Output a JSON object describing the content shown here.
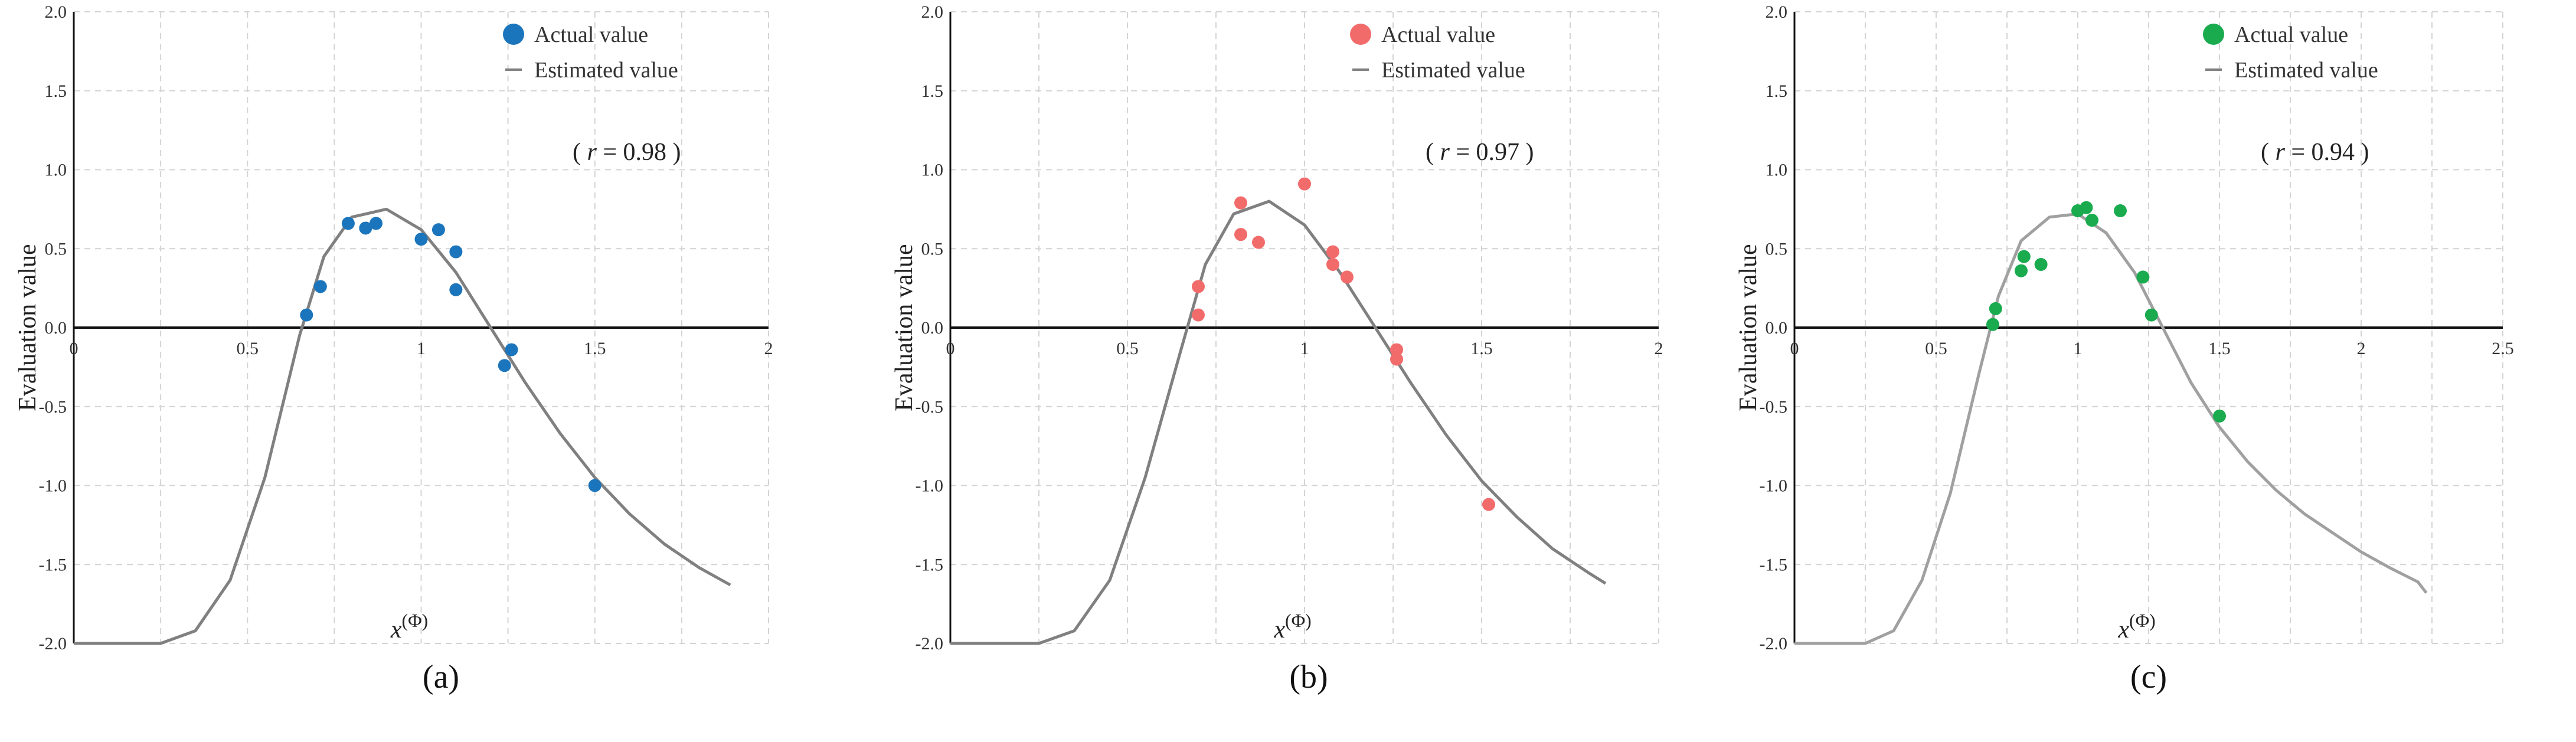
{
  "chart_data": [
    {
      "type": "scatter",
      "panel": "a",
      "caption": "(a)",
      "ylabel": "Evaluation value",
      "xlabel_base": "x",
      "xlabel_sup": "(Φ)",
      "origin_label": "0",
      "xlim": [
        0,
        2
      ],
      "ylim": [
        -2.0,
        2.0
      ],
      "xticks": [
        {
          "v": 0.5,
          "label": "0.5"
        },
        {
          "v": 1,
          "label": "1"
        },
        {
          "v": 1.5,
          "label": "1.5"
        },
        {
          "v": 2,
          "label": "2"
        }
      ],
      "yticks": [
        {
          "v": 2.0,
          "label": "2.0"
        },
        {
          "v": 1.5,
          "label": "1.5"
        },
        {
          "v": 1.0,
          "label": "1.0"
        },
        {
          "v": 0.5,
          "label": "0.5"
        },
        {
          "v": 0.0,
          "label": "0.0"
        },
        {
          "v": -0.5,
          "label": "-0.5"
        },
        {
          "v": -1.0,
          "label": "-1.0"
        },
        {
          "v": -1.5,
          "label": "-1.5"
        },
        {
          "v": -2.0,
          "label": "-2.0"
        }
      ],
      "grid": true,
      "legend": {
        "placement": "top-right",
        "actual": "Actual value",
        "estimated": "Estimated value"
      },
      "r_label": "( r = 0.98 )",
      "color": "#1b75bc",
      "curve_color": "#808080",
      "series": [
        {
          "name": "Actual value",
          "points": [
            [
              0.67,
              0.08
            ],
            [
              0.71,
              0.26
            ],
            [
              0.79,
              0.66
            ],
            [
              0.84,
              0.63
            ],
            [
              0.87,
              0.66
            ],
            [
              1.0,
              0.56
            ],
            [
              1.05,
              0.62
            ],
            [
              1.1,
              0.48
            ],
            [
              1.1,
              0.24
            ],
            [
              1.24,
              -0.24
            ],
            [
              1.26,
              -0.14
            ],
            [
              1.5,
              -1.0
            ]
          ]
        },
        {
          "name": "Estimated value",
          "points": [
            [
              0.0,
              -2.0
            ],
            [
              0.25,
              -2.0
            ],
            [
              0.35,
              -1.92
            ],
            [
              0.45,
              -1.6
            ],
            [
              0.55,
              -0.95
            ],
            [
              0.65,
              -0.05
            ],
            [
              0.72,
              0.45
            ],
            [
              0.8,
              0.7
            ],
            [
              0.9,
              0.75
            ],
            [
              1.0,
              0.62
            ],
            [
              1.1,
              0.35
            ],
            [
              1.2,
              0.0
            ],
            [
              1.3,
              -0.35
            ],
            [
              1.4,
              -0.67
            ],
            [
              1.5,
              -0.95
            ],
            [
              1.6,
              -1.18
            ],
            [
              1.7,
              -1.37
            ],
            [
              1.8,
              -1.52
            ],
            [
              1.89,
              -1.63
            ]
          ]
        }
      ]
    },
    {
      "type": "scatter",
      "panel": "b",
      "caption": "(b)",
      "ylabel": "Evaluation value",
      "xlabel_base": "x",
      "xlabel_sup": "(Φ)",
      "origin_label": "0",
      "xlim": [
        0,
        2
      ],
      "ylim": [
        -2.0,
        2.0
      ],
      "xticks": [
        {
          "v": 0.5,
          "label": "0.5"
        },
        {
          "v": 1,
          "label": "1"
        },
        {
          "v": 1.5,
          "label": "1.5"
        },
        {
          "v": 2,
          "label": "2"
        }
      ],
      "yticks": [
        {
          "v": 2.0,
          "label": "2.0"
        },
        {
          "v": 1.5,
          "label": "1.5"
        },
        {
          "v": 1.0,
          "label": "1.0"
        },
        {
          "v": 0.5,
          "label": "0.5"
        },
        {
          "v": 0.0,
          "label": "0.0"
        },
        {
          "v": -0.5,
          "label": "-0.5"
        },
        {
          "v": -1.0,
          "label": "-1.0"
        },
        {
          "v": -1.5,
          "label": "-1.5"
        },
        {
          "v": -2.0,
          "label": "-2.0"
        }
      ],
      "grid": true,
      "legend": {
        "placement": "top-right",
        "actual": "Actual value",
        "estimated": "Estimated value"
      },
      "r_label": "( r = 0.97 )",
      "color": "#f26b6b",
      "curve_color": "#808080",
      "series": [
        {
          "name": "Actual value",
          "points": [
            [
              0.7,
              0.08
            ],
            [
              0.7,
              0.26
            ],
            [
              0.82,
              0.79
            ],
            [
              0.82,
              0.59
            ],
            [
              0.87,
              0.54
            ],
            [
              1.0,
              0.91
            ],
            [
              1.08,
              0.48
            ],
            [
              1.08,
              0.4
            ],
            [
              1.12,
              0.32
            ],
            [
              1.26,
              -0.14
            ],
            [
              1.26,
              -0.2
            ],
            [
              1.52,
              -1.12
            ]
          ]
        },
        {
          "name": "Estimated value",
          "points": [
            [
              0.0,
              -2.0
            ],
            [
              0.25,
              -2.0
            ],
            [
              0.35,
              -1.92
            ],
            [
              0.45,
              -1.6
            ],
            [
              0.55,
              -0.95
            ],
            [
              0.65,
              -0.15
            ],
            [
              0.72,
              0.4
            ],
            [
              0.8,
              0.72
            ],
            [
              0.9,
              0.8
            ],
            [
              1.0,
              0.65
            ],
            [
              1.1,
              0.35
            ],
            [
              1.2,
              0.0
            ],
            [
              1.3,
              -0.35
            ],
            [
              1.4,
              -0.68
            ],
            [
              1.5,
              -0.97
            ],
            [
              1.6,
              -1.2
            ],
            [
              1.7,
              -1.4
            ],
            [
              1.8,
              -1.55
            ],
            [
              1.85,
              -1.62
            ]
          ]
        }
      ]
    },
    {
      "type": "scatter",
      "panel": "c",
      "caption": "(c)",
      "ylabel": "Evaluation value",
      "xlabel_base": "x",
      "xlabel_sup": "(Φ)",
      "origin_label": "0",
      "xlim": [
        0,
        2.5
      ],
      "ylim": [
        -2.0,
        2.0
      ],
      "xticks": [
        {
          "v": 0.5,
          "label": "0.5"
        },
        {
          "v": 1,
          "label": "1"
        },
        {
          "v": 1.5,
          "label": "1.5"
        },
        {
          "v": 2,
          "label": "2"
        },
        {
          "v": 2.5,
          "label": "2.5"
        }
      ],
      "yticks": [
        {
          "v": 2.0,
          "label": "2.0"
        },
        {
          "v": 1.5,
          "label": "1.5"
        },
        {
          "v": 1.0,
          "label": "1.0"
        },
        {
          "v": 0.5,
          "label": "0.5"
        },
        {
          "v": 0.0,
          "label": "0.0"
        },
        {
          "v": -0.5,
          "label": "-0.5"
        },
        {
          "v": -1.0,
          "label": "-1.0"
        },
        {
          "v": -1.5,
          "label": "-1.5"
        },
        {
          "v": -2.0,
          "label": "-2.0"
        }
      ],
      "grid": true,
      "legend": {
        "placement": "top-right",
        "actual": "Actual value",
        "estimated": "Estimated value"
      },
      "r_label": "( r = 0.94 )",
      "color": "#1aab4f",
      "curve_color": "#a0a0a0",
      "series": [
        {
          "name": "Actual value",
          "points": [
            [
              0.7,
              0.02
            ],
            [
              0.71,
              0.12
            ],
            [
              0.8,
              0.36
            ],
            [
              0.81,
              0.45
            ],
            [
              0.87,
              0.4
            ],
            [
              1.0,
              0.74
            ],
            [
              1.03,
              0.76
            ],
            [
              1.05,
              0.68
            ],
            [
              1.15,
              0.74
            ],
            [
              1.23,
              0.32
            ],
            [
              1.26,
              0.08
            ],
            [
              1.5,
              -0.56
            ]
          ]
        },
        {
          "name": "Estimated value",
          "points": [
            [
              0.0,
              -2.0
            ],
            [
              0.25,
              -2.0
            ],
            [
              0.35,
              -1.92
            ],
            [
              0.45,
              -1.6
            ],
            [
              0.55,
              -1.05
            ],
            [
              0.65,
              -0.3
            ],
            [
              0.72,
              0.2
            ],
            [
              0.8,
              0.55
            ],
            [
              0.9,
              0.7
            ],
            [
              1.0,
              0.72
            ],
            [
              1.1,
              0.6
            ],
            [
              1.2,
              0.35
            ],
            [
              1.3,
              0.0
            ],
            [
              1.4,
              -0.35
            ],
            [
              1.5,
              -0.63
            ],
            [
              1.6,
              -0.85
            ],
            [
              1.7,
              -1.03
            ],
            [
              1.8,
              -1.18
            ],
            [
              1.9,
              -1.3
            ],
            [
              2.0,
              -1.42
            ],
            [
              2.1,
              -1.52
            ],
            [
              2.2,
              -1.61
            ],
            [
              2.23,
              -1.68
            ]
          ]
        }
      ]
    }
  ]
}
